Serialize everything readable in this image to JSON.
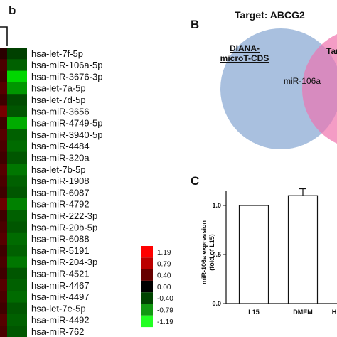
{
  "panel_heatmap": {
    "column_label": "b",
    "rows": [
      {
        "name": "hsa-let-7f-5p",
        "a": 0.2,
        "b": -0.3
      },
      {
        "name": "hsa-miR-106a-5p",
        "a": 0.35,
        "b": -0.45
      },
      {
        "name": "hsa-miR-3676-3p",
        "a": 0.3,
        "b": -1.0
      },
      {
        "name": "hsa-let-7a-5p",
        "a": 0.4,
        "b": -0.7
      },
      {
        "name": "hsa-let-7d-5p",
        "a": 0.3,
        "b": -0.35
      },
      {
        "name": "hsa-miR-3656",
        "a": 0.55,
        "b": -0.4
      },
      {
        "name": "hsa-miR-4749-5p",
        "a": 0.3,
        "b": -0.8
      },
      {
        "name": "hsa-miR-3940-5p",
        "a": 0.4,
        "b": -0.45
      },
      {
        "name": "hsa-miR-4484",
        "a": 0.35,
        "b": -0.5
      },
      {
        "name": "hsa-miR-320a",
        "a": 0.3,
        "b": -0.4
      },
      {
        "name": "hsa-let-7b-5p",
        "a": 0.4,
        "b": -0.55
      },
      {
        "name": "hsa-miR-1908",
        "a": 0.35,
        "b": -0.45
      },
      {
        "name": "hsa-miR-6087",
        "a": 0.3,
        "b": -0.4
      },
      {
        "name": "hsa-miR-4792",
        "a": 0.5,
        "b": -0.6
      },
      {
        "name": "hsa-miR-222-3p",
        "a": 0.3,
        "b": -0.45
      },
      {
        "name": "hsa-miR-20b-5p",
        "a": 0.35,
        "b": -0.4
      },
      {
        "name": "hsa-miR-6088",
        "a": 0.4,
        "b": -0.5
      },
      {
        "name": "hsa-miR-5191",
        "a": 0.3,
        "b": -0.45
      },
      {
        "name": "hsa-miR-204-3p",
        "a": 0.35,
        "b": -0.55
      },
      {
        "name": "hsa-miR-4521",
        "a": 0.3,
        "b": -0.4
      },
      {
        "name": "hsa-miR-4467",
        "a": 0.4,
        "b": -0.45
      },
      {
        "name": "hsa-miR-4497",
        "a": 0.35,
        "b": -0.5
      },
      {
        "name": "hsa-let-7e-5p",
        "a": 0.3,
        "b": -0.4
      },
      {
        "name": "hsa-miR-4492",
        "a": 0.4,
        "b": -0.45
      },
      {
        "name": "hsa-miR-762",
        "a": 0.35,
        "b": -0.4
      }
    ],
    "color_scale": [
      {
        "label": "1.19",
        "value": 1.19,
        "color": "#ff0000"
      },
      {
        "label": "0.79",
        "value": 0.79,
        "color": "#bb0000"
      },
      {
        "label": "0.40",
        "value": 0.4,
        "color": "#660000"
      },
      {
        "label": "0.00",
        "value": 0.0,
        "color": "#000000"
      },
      {
        "label": "-0.40",
        "value": -0.4,
        "color": "#004400"
      },
      {
        "label": "-0.79",
        "value": -0.79,
        "color": "#119911"
      },
      {
        "label": "-1.19",
        "value": -1.19,
        "color": "#22ff22"
      }
    ]
  },
  "panel_venn": {
    "letter": "B",
    "title": "Target: ABCG2",
    "left_set_label_line1": "DIANA-",
    "left_set_label_line2": "microT-CDS",
    "right_set_label": "Tar",
    "overlap_label": "miR-106a",
    "left_color": "#a9c0df",
    "right_color": "#f49cc5",
    "overlap_color": "#d78bbf"
  },
  "panel_bar": {
    "letter": "C",
    "chart_data": {
      "type": "bar",
      "categories": [
        "L15",
        "DMEM",
        "H"
      ],
      "values": [
        1.0,
        1.1,
        null
      ],
      "errors": [
        0,
        0.07,
        null
      ],
      "ylabel_line1": "miR-106a expression",
      "ylabel_line2": "(fold of L15)",
      "ylim": [
        0,
        1.0
      ],
      "yticks": [
        "1.0",
        "0.5",
        "0.0"
      ],
      "xtick_labels": [
        "L15",
        "DMEM",
        "H"
      ],
      "legend": "none",
      "grid": false
    }
  }
}
